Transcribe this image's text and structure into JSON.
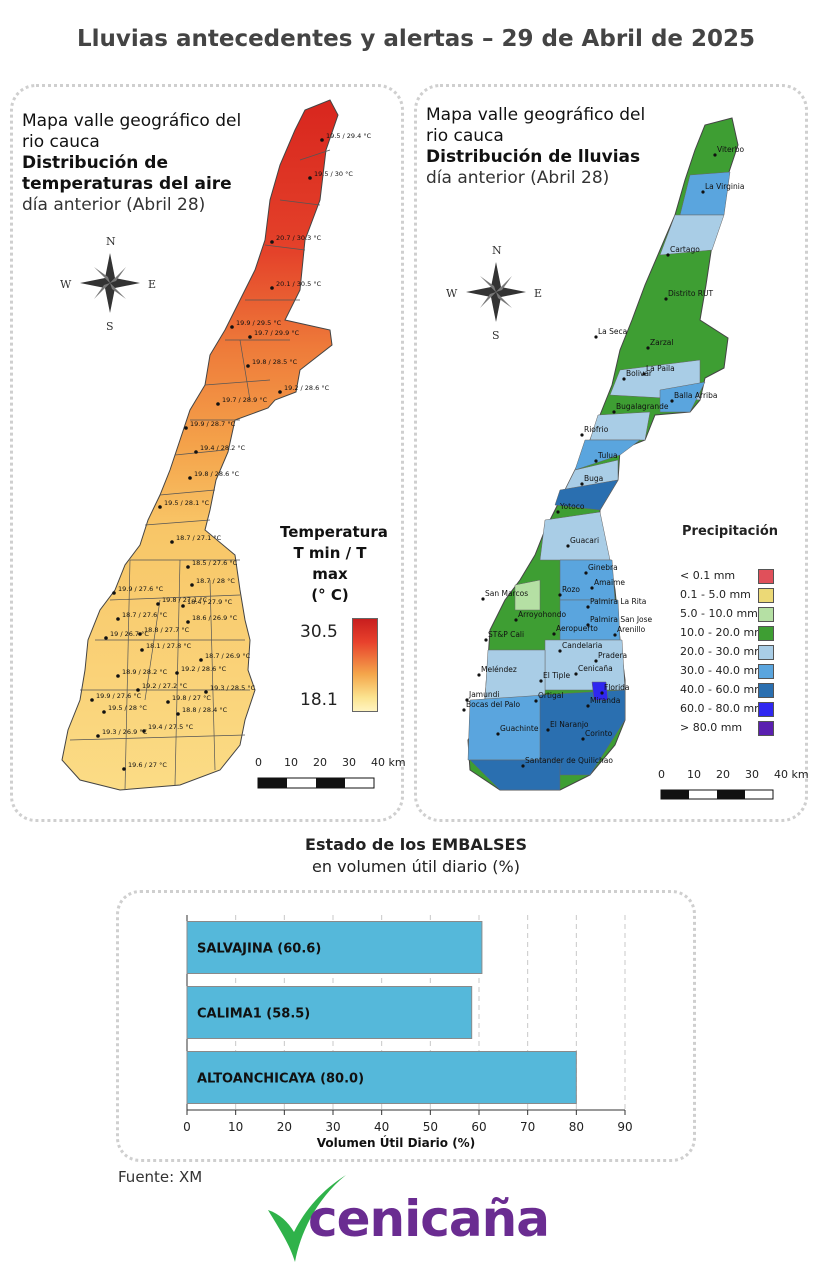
{
  "title": "Lluvias antecedentes y alertas – 29 de Abril de 2025",
  "temp_map": {
    "title_line1": "Mapa valle geográfico del",
    "title_line2": "rio cauca",
    "title_bold1": "Distribución de",
    "title_bold2": "temperaturas del aire",
    "subtitle": "día anterior (Abril 28)",
    "legend_title_1": "Temperatura",
    "legend_title_2": "T min / T max",
    "legend_title_3": "(° C)",
    "legend_max": "30.5",
    "legend_min": "18.1",
    "compass": {
      "n": "N",
      "s": "S",
      "e": "E",
      "w": "W"
    },
    "scale": [
      "0",
      "10",
      "20",
      "30",
      "40 km"
    ],
    "stations": [
      "19.5 / 29.4 °C",
      "19.5 / 30 °C",
      "20.7 / 30.3 °C",
      "20.1 / 30.5 °C",
      "19.9 / 29.5 °C",
      "19.7 / 29.9 °C",
      "19.8 / 28.5 °C",
      "19.2 / 28.6 °C",
      "19.7 / 28.9 °C",
      "19.9 / 28.7 °C",
      "19.4 / 28.2 °C",
      "19.8 / 28.6 °C",
      "19.5 / 28.1 °C",
      "18.7 / 27.1 °C",
      "18.5 / 27.6 °C",
      "18.7 / 28 °C",
      "19.9 / 27.6 °C",
      "19.8 / 27.1 °C",
      "18.4 / 27.9 °C",
      "18.7 / 27.6 °C",
      "18.6 / 26.9 °C",
      "18.8 / 27.7 °C",
      "19 / 26.7 °C",
      "18.1 / 27.8 °C",
      "18.7 / 26.9 °C",
      "18.9 / 28.2 °C",
      "19.2 / 28.6 °C",
      "19.2 / 27.2 °C",
      "19.3 / 28.5 °C",
      "19.9 / 27.6 °C",
      "19.8 / 27 °C",
      "19.5 / 28 °C",
      "18.8 / 28.4 °C",
      "19.3 / 26.9 °C",
      "19.4 / 27.5 °C",
      "19.6 / 27 °C"
    ]
  },
  "rain_map": {
    "title_line1": "Mapa valle geográfico del",
    "title_line2": "rio cauca",
    "title_bold": "Distribución de lluvias",
    "subtitle": "día anterior (Abril 28)",
    "legend_title": "Precipitación",
    "compass": {
      "n": "N",
      "s": "S",
      "e": "E",
      "w": "W"
    },
    "scale": [
      "0",
      "10",
      "20",
      "30",
      "40 km"
    ],
    "legend": [
      {
        "label": "< 0.1 mm",
        "color": "#e0505a"
      },
      {
        "label": "0.1 - 5.0 mm",
        "color": "#ecd976"
      },
      {
        "label": "5.0 - 10.0 mm",
        "color": "#b5e0a4"
      },
      {
        "label": "10.0 - 20.0 mm",
        "color": "#3e9e33"
      },
      {
        "label": "20.0 - 30.0 mm",
        "color": "#a9cde6"
      },
      {
        "label": "30.0 - 40.0 mm",
        "color": "#5aa5de"
      },
      {
        "label": "40.0 - 60.0 mm",
        "color": "#2a6fb0"
      },
      {
        "label": "60.0 - 80.0 mm",
        "color": "#2f27f0"
      },
      {
        "label": "> 80.0 mm",
        "color": "#5a1fb0"
      }
    ],
    "places": [
      "Viterbo",
      "La Virginia",
      "Cartago",
      "Distrito RUT",
      "La Seca",
      "Zarzal",
      "La Paila",
      "Bolivar",
      "Balla Arriba",
      "Bugalagrande",
      "Riofrio",
      "Tulua",
      "Buga",
      "Yotoco",
      "Guacari",
      "Ginebra",
      "San Marcos",
      "Rozo",
      "Amaime",
      "Palmira La Rita",
      "Arroyohondo",
      "Palmira San Jose",
      "ST&P Cali",
      "Aeropuerto",
      "Arenillo",
      "Candelaria",
      "Pradera",
      "Cenicaña",
      "Meléndez",
      "El Tiple",
      "Jamundi",
      "Bocas del Palo",
      "Ortigal",
      "Florida",
      "Miranda",
      "El Naranjo",
      "Guachinte",
      "Corinto",
      "Santander de Quilichao"
    ]
  },
  "reservoirs": {
    "title_bold": "Estado de los EMBALSES",
    "title_rest": "en volumen útil diario (%)",
    "xlabel": "Volumen Útil Diario (%)"
  },
  "chart_data": {
    "type": "bar",
    "orientation": "horizontal",
    "categories": [
      "SALVAJINA (60.6)",
      "CALIMA1 (58.5)",
      "ALTOANCHICAYA (80.0)"
    ],
    "values": [
      60.6,
      58.5,
      80.0
    ],
    "xlabel": "Volumen Útil Diario (%)",
    "xlim": [
      0,
      90
    ],
    "xticks": [
      "0",
      "10",
      "20",
      "30",
      "40",
      "50",
      "60",
      "70",
      "80",
      "90"
    ],
    "bar_color": "#55b8da",
    "grid": "vertical dashed"
  },
  "source": "Fuente: XM",
  "logo": "cenicaña",
  "colors": {
    "logo_purple": "#6a2c91",
    "logo_green": "#2fb24a"
  }
}
